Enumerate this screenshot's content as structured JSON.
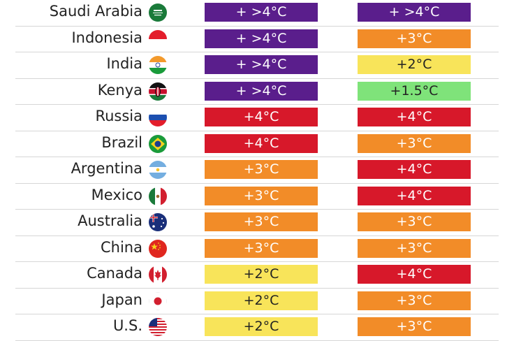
{
  "chart_data": {
    "type": "table",
    "colors": {
      "+ >4°C": "#5a1e8c",
      "+4°C": "#d7182a",
      "+3°C": "#f28c28",
      "+2°C": "#f8e45a",
      "+1.5°C": "#7fe37a"
    },
    "text_colors": {
      "+ >4°C": "#ffffff",
      "+4°C": "#ffffff",
      "+3°C": "#ffffff",
      "+2°C": "#222222",
      "+1.5°C": "#222222"
    },
    "rows": [
      {
        "country": "Saudi Arabia",
        "flag": "saudi-arabia-flag-icon",
        "v1": "+ >4°C",
        "v2": "+ >4°C"
      },
      {
        "country": "Indonesia",
        "flag": "indonesia-flag-icon",
        "v1": "+ >4°C",
        "v2": "+3°C"
      },
      {
        "country": "India",
        "flag": "india-flag-icon",
        "v1": "+ >4°C",
        "v2": "+2°C"
      },
      {
        "country": "Kenya",
        "flag": "kenya-flag-icon",
        "v1": "+ >4°C",
        "v2": "+1.5°C"
      },
      {
        "country": "Russia",
        "flag": "russia-flag-icon",
        "v1": "+4°C",
        "v2": "+4°C"
      },
      {
        "country": "Brazil",
        "flag": "brazil-flag-icon",
        "v1": "+4°C",
        "v2": "+3°C"
      },
      {
        "country": "Argentina",
        "flag": "argentina-flag-icon",
        "v1": "+3°C",
        "v2": "+4°C"
      },
      {
        "country": "Mexico",
        "flag": "mexico-flag-icon",
        "v1": "+3°C",
        "v2": "+4°C"
      },
      {
        "country": "Australia",
        "flag": "australia-flag-icon",
        "v1": "+3°C",
        "v2": "+3°C"
      },
      {
        "country": "China",
        "flag": "china-flag-icon",
        "v1": "+3°C",
        "v2": "+3°C"
      },
      {
        "country": "Canada",
        "flag": "canada-flag-icon",
        "v1": "+2°C",
        "v2": "+4°C"
      },
      {
        "country": "Japan",
        "flag": "japan-flag-icon",
        "v1": "+2°C",
        "v2": "+3°C"
      },
      {
        "country": "U.S.",
        "flag": "us-flag-icon",
        "v1": "+2°C",
        "v2": "+3°C"
      }
    ]
  }
}
